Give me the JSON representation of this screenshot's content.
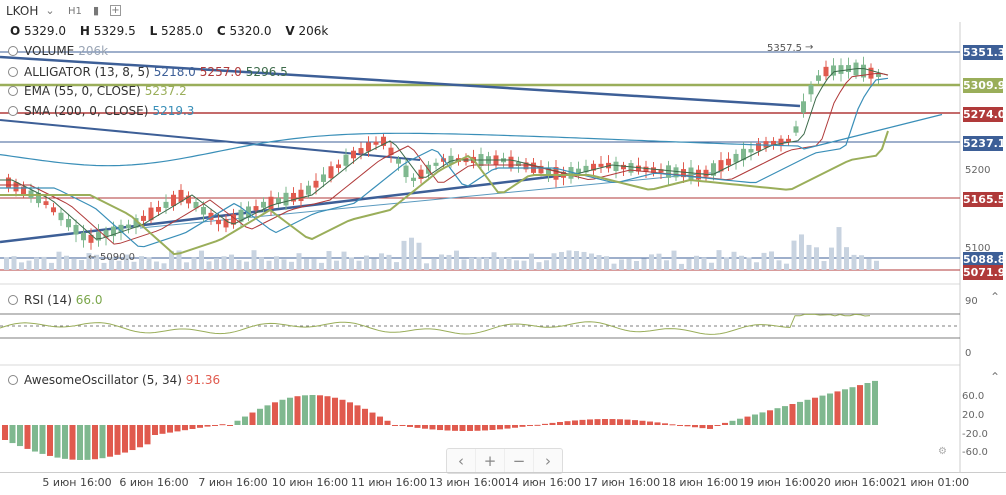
{
  "header": {
    "symbol": "LKOH",
    "timeframe": "H1",
    "icons": [
      "chevron-down-icon",
      "bar-chart-icon",
      "add-square-icon"
    ]
  },
  "ohlc": {
    "o_label": "O",
    "o_value": "5329.0",
    "h_label": "H",
    "h_value": "5329.5",
    "l_label": "L",
    "l_value": "5285.0",
    "c_label": "C",
    "c_value": "5320.0",
    "v_label": "V",
    "v_value": "206k"
  },
  "indicators": {
    "volume": {
      "name": "VOLUME",
      "value": "206k"
    },
    "alligator": {
      "name": "ALLIGATOR (13, 8, 5)",
      "jaw": "5218.0",
      "teeth": "5257.0",
      "lips": "5296.5"
    },
    "ema": {
      "name": "EMA (55, 0, CLOSE)",
      "value": "5237.2"
    },
    "sma": {
      "name": "SMA (200, 0, CLOSE)",
      "value": "5219.3"
    }
  },
  "price_labels": {
    "p1": "5351.3",
    "p2": "5309.9",
    "p3": "5274.0",
    "p4": "5237.1",
    "p5": "5165.5",
    "p6": "5088.8",
    "p7": "5071.9"
  },
  "annotations": {
    "high_mark": "5357.5",
    "low_mark": "5090.0"
  },
  "axis_labels": {
    "a5200": "5200",
    "a5100": "5100"
  },
  "rsi": {
    "title": "RSI (14)",
    "value": "66.0",
    "top": "90",
    "bottom": "0"
  },
  "ao": {
    "title": "AwesomeOscillator (5, 34)",
    "value": "91.36",
    "ticks": [
      "60.0",
      "20.0",
      "-20.0",
      "-60.0"
    ]
  },
  "time_labels": [
    "5 июн 16:00",
    "6 июн 16:00",
    "7 июн 16:00",
    "10 июн 16:00",
    "11 июн 16:00",
    "13 июн 16:00",
    "14 июн 16:00",
    "17 июн 16:00",
    "18 июн 16:00",
    "19 июн 16:00",
    "20 июн 16:00",
    "21 июн 01:00"
  ],
  "colors": {
    "up": "#7fb88f",
    "down": "#e05a4e",
    "blue": "#3d5f97",
    "olive": "#9aae5a",
    "darkred": "#b03a3a",
    "teal": "#3a8fb8",
    "gray": "#8a8f99"
  }
}
